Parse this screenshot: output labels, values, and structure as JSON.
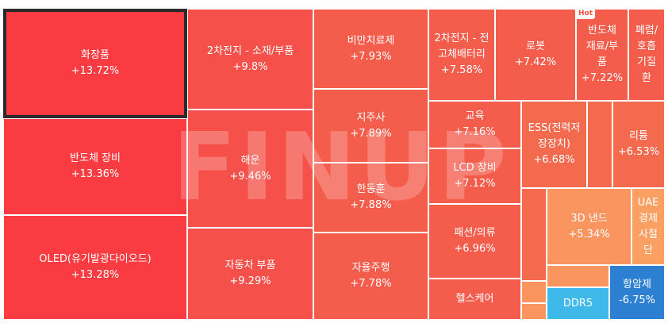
{
  "watermark": "FINUP",
  "hot_badge": "Hot",
  "tiles": [
    {
      "name": "화장품",
      "pct": "+13.72%"
    },
    {
      "name": "반도체 장비",
      "pct": "+13.36%"
    },
    {
      "name": "OLED(유기발광다이오드)",
      "pct": "+13.28%"
    },
    {
      "name": "2차전지 - 소재/부품",
      "pct": "+9.8%"
    },
    {
      "name": "해운",
      "pct": "+9.46%"
    },
    {
      "name": "자동차 부품",
      "pct": "+9.29%"
    },
    {
      "name": "비만치료제",
      "pct": "+7.93%"
    },
    {
      "name": "지주사",
      "pct": "+7.89%"
    },
    {
      "name": "한동훈",
      "pct": "+7.88%"
    },
    {
      "name": "자율주행",
      "pct": "+7.78%"
    },
    {
      "name": "2차전지 - 전\n고체배터리",
      "pct": "+7.58%"
    },
    {
      "name": "로봇",
      "pct": "+7.42%"
    },
    {
      "name": "반도체\n재료/부\n품",
      "pct": "+7.22%"
    },
    {
      "name": "폐렴/\n호흡\n기질\n환",
      "pct": ""
    },
    {
      "name": "교육",
      "pct": "+7.16%"
    },
    {
      "name": "LCD 장비",
      "pct": "+7.12%"
    },
    {
      "name": "ESS(전력저\n장장치)",
      "pct": "+6.68%"
    },
    {
      "name": "리튬",
      "pct": "+6.53%"
    },
    {
      "name": "패션/의류",
      "pct": "+6.96%"
    },
    {
      "name": "헬스케어",
      "pct": ""
    },
    {
      "name": "3D 낸드",
      "pct": "+5.34%"
    },
    {
      "name": "UAE\n경제\n사절\n단",
      "pct": ""
    },
    {
      "name": "DDR5",
      "pct": ""
    },
    {
      "name": "항암제",
      "pct": "-6.75%"
    }
  ]
}
